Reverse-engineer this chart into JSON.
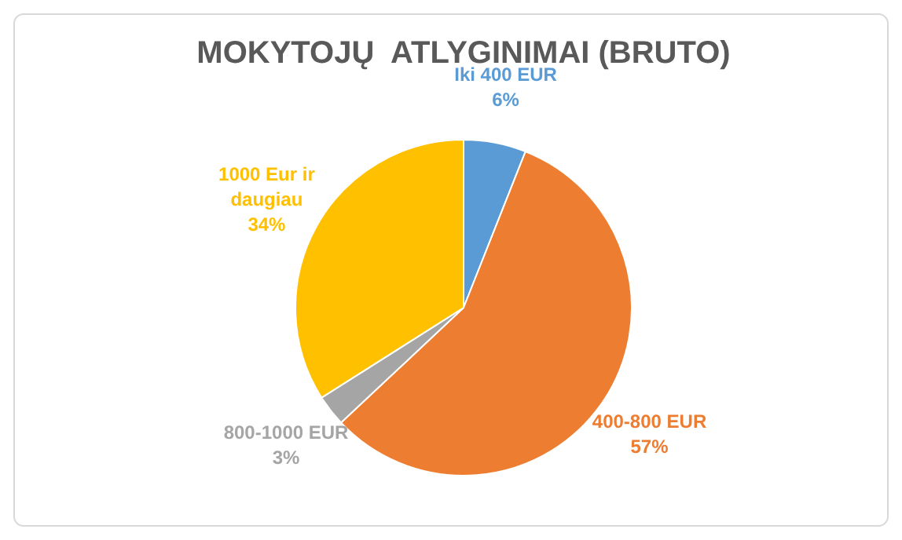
{
  "chart_data": {
    "type": "pie",
    "title": "MOKYTOJŲ  ATLYGINIMAI (BRUTO)",
    "categories": [
      "Iki 400 EUR",
      "400-800 EUR",
      "800-1000 EUR",
      "1000 Eur ir daugiau"
    ],
    "values": [
      6,
      57,
      3,
      34
    ],
    "colors": [
      "#5b9bd5",
      "#ed7d31",
      "#a5a5a5",
      "#ffc000"
    ],
    "value_labels": [
      "6%",
      "57%",
      "3%",
      "34%"
    ]
  }
}
